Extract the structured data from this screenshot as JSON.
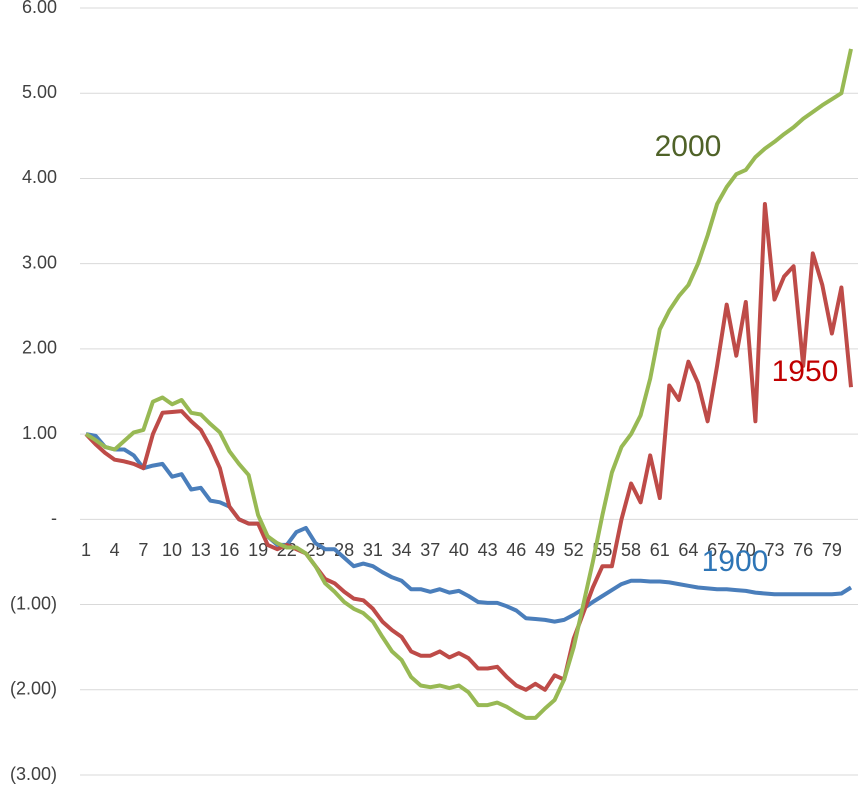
{
  "chart_data": {
    "type": "line",
    "categories": [
      1,
      null,
      null,
      4,
      null,
      null,
      7,
      null,
      null,
      10,
      null,
      null,
      13,
      null,
      null,
      16,
      null,
      null,
      19,
      null,
      null,
      22,
      null,
      null,
      25,
      null,
      null,
      28,
      null,
      null,
      31,
      null,
      null,
      34,
      null,
      null,
      37,
      null,
      null,
      40,
      null,
      null,
      43,
      null,
      null,
      46,
      null,
      null,
      49,
      null,
      null,
      52,
      null,
      null,
      55,
      null,
      null,
      58,
      null,
      null,
      61,
      null,
      null,
      64,
      null,
      null,
      67,
      null,
      null,
      70,
      null,
      null,
      73,
      null,
      null,
      76,
      null,
      null,
      79,
      null,
      null
    ],
    "series": [
      {
        "name": "1900",
        "color": "#4a7ebb",
        "label_color": "#2e75b6",
        "values": [
          1.0,
          0.98,
          0.85,
          0.82,
          0.82,
          0.75,
          0.6,
          0.63,
          0.65,
          0.5,
          0.53,
          0.35,
          0.37,
          0.22,
          0.2,
          0.15,
          0.0,
          -0.05,
          -0.05,
          -0.2,
          -0.3,
          -0.3,
          -0.15,
          -0.1,
          -0.28,
          -0.35,
          -0.35,
          -0.45,
          -0.55,
          -0.52,
          -0.55,
          -0.62,
          -0.68,
          -0.72,
          -0.82,
          -0.82,
          -0.85,
          -0.82,
          -0.86,
          -0.84,
          -0.9,
          -0.97,
          -0.98,
          -0.98,
          -1.02,
          -1.07,
          -1.16,
          -1.17,
          -1.18,
          -1.2,
          -1.18,
          -1.12,
          -1.05,
          -0.97,
          -0.9,
          -0.83,
          -0.76,
          -0.72,
          -0.72,
          -0.73,
          -0.73,
          -0.74,
          -0.76,
          -0.78,
          -0.8,
          -0.81,
          -0.82,
          -0.82,
          -0.83,
          -0.84,
          -0.86,
          -0.87,
          -0.88,
          -0.88,
          -0.88,
          -0.88,
          -0.88,
          -0.88,
          -0.88,
          -0.87,
          -0.8
        ]
      },
      {
        "name": "1950",
        "color": "#be4b48",
        "label_color": "#c00000",
        "values": [
          1.0,
          0.88,
          0.78,
          0.7,
          0.68,
          0.65,
          0.6,
          1.0,
          1.25,
          1.26,
          1.27,
          1.15,
          1.05,
          0.85,
          0.6,
          0.15,
          0.0,
          -0.05,
          -0.05,
          -0.3,
          -0.35,
          -0.3,
          -0.35,
          -0.4,
          -0.55,
          -0.7,
          -0.75,
          -0.85,
          -0.93,
          -0.95,
          -1.05,
          -1.2,
          -1.3,
          -1.38,
          -1.55,
          -1.6,
          -1.6,
          -1.55,
          -1.62,
          -1.57,
          -1.63,
          -1.75,
          -1.75,
          -1.73,
          -1.85,
          -1.95,
          -2.0,
          -1.93,
          -2.0,
          -1.83,
          -1.88,
          -1.4,
          -1.1,
          -0.8,
          -0.55,
          -0.55,
          0.0,
          0.42,
          0.2,
          0.75,
          0.25,
          1.57,
          1.4,
          1.85,
          1.6,
          1.15,
          1.8,
          2.52,
          1.92,
          2.55,
          1.15,
          3.7,
          2.58,
          2.85,
          2.97,
          1.8,
          3.12,
          2.75,
          2.18,
          2.72,
          1.55
        ]
      },
      {
        "name": "2000",
        "color": "#98b954",
        "label_color": "#4f6228",
        "values": [
          1.0,
          0.93,
          0.85,
          0.82,
          0.92,
          1.02,
          1.05,
          1.38,
          1.43,
          1.35,
          1.4,
          1.25,
          1.23,
          1.12,
          1.02,
          0.8,
          0.65,
          0.52,
          0.05,
          -0.2,
          -0.28,
          -0.33,
          -0.33,
          -0.4,
          -0.55,
          -0.75,
          -0.85,
          -0.97,
          -1.05,
          -1.1,
          -1.2,
          -1.38,
          -1.55,
          -1.65,
          -1.85,
          -1.95,
          -1.97,
          -1.95,
          -1.98,
          -1.95,
          -2.03,
          -2.18,
          -2.18,
          -2.15,
          -2.2,
          -2.27,
          -2.33,
          -2.33,
          -2.22,
          -2.12,
          -1.88,
          -1.5,
          -1.0,
          -0.5,
          0.05,
          0.55,
          0.85,
          1.0,
          1.22,
          1.65,
          2.23,
          2.45,
          2.62,
          2.75,
          3.0,
          3.33,
          3.7,
          3.9,
          4.05,
          4.1,
          4.25,
          4.35,
          4.43,
          4.52,
          4.6,
          4.7,
          4.78,
          4.86,
          4.93,
          5.0,
          5.52
        ]
      }
    ],
    "ylim": [
      -3,
      6
    ],
    "yticks": [
      {
        "value": -3,
        "label": "(3.00)"
      },
      {
        "value": -2,
        "label": "(2.00)"
      },
      {
        "value": -1,
        "label": "(1.00)"
      },
      {
        "value": 0,
        "label": "-"
      },
      {
        "value": 1,
        "label": "1.00"
      },
      {
        "value": 2,
        "label": "2.00"
      },
      {
        "value": 3,
        "label": "3.00"
      },
      {
        "value": 4,
        "label": "4.00"
      },
      {
        "value": 5,
        "label": "5.00"
      },
      {
        "value": 6,
        "label": "6.00"
      }
    ],
    "grid": true
  }
}
